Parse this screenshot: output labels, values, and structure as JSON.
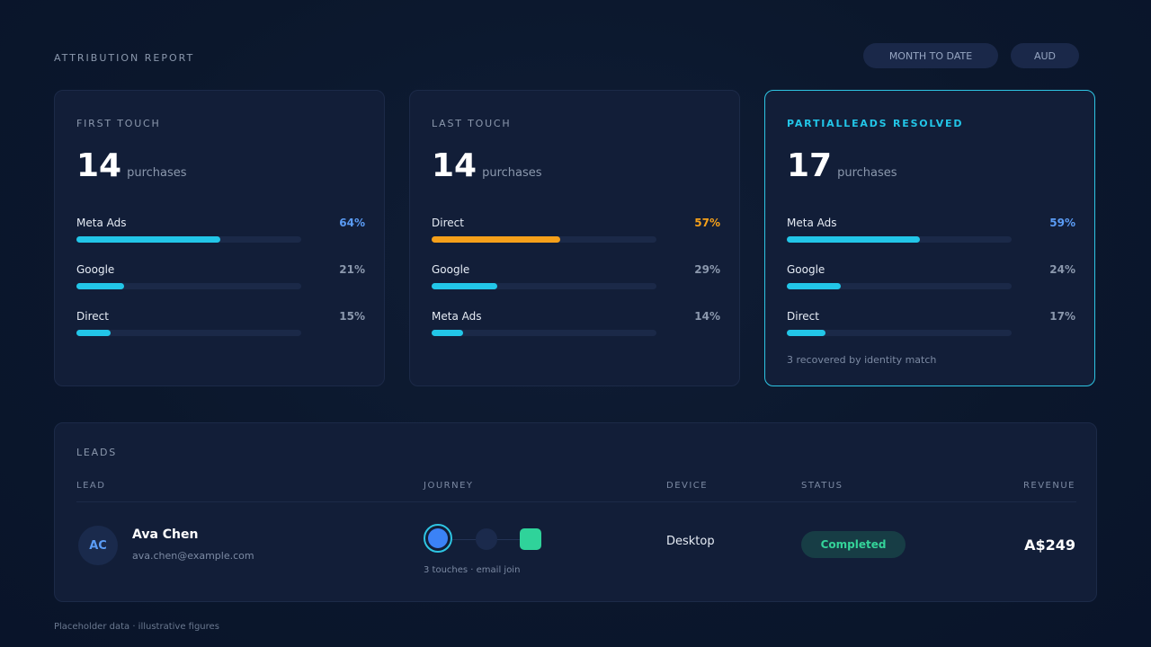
{
  "header": {
    "title": "ATTRIBUTION REPORT",
    "date_range": "MONTH TO DATE",
    "currency": "AUD"
  },
  "cards": [
    {
      "label": "FIRST TOUCH",
      "count": "14",
      "unit": "purchases",
      "rows": [
        {
          "channel": "Meta Ads",
          "pct_text": "64%",
          "pct": 64,
          "bar_color": "#22c6e8",
          "pct_color": "#5b9cf5"
        },
        {
          "channel": "Google",
          "pct_text": "21%",
          "pct": 21,
          "bar_color": "#22c6e8",
          "pct_color": "#8b98ad"
        },
        {
          "channel": "Direct",
          "pct_text": "15%",
          "pct": 15,
          "bar_color": "#22c6e8",
          "pct_color": "#8b98ad"
        }
      ]
    },
    {
      "label": "LAST TOUCH",
      "count": "14",
      "unit": "purchases",
      "rows": [
        {
          "channel": "Direct",
          "pct_text": "57%",
          "pct": 57,
          "bar_color": "#f5a01a",
          "pct_color": "#f5a01a"
        },
        {
          "channel": "Google",
          "pct_text": "29%",
          "pct": 29,
          "bar_color": "#22c6e8",
          "pct_color": "#8b98ad"
        },
        {
          "channel": "Meta Ads",
          "pct_text": "14%",
          "pct": 14,
          "bar_color": "#22c6e8",
          "pct_color": "#8b98ad"
        }
      ]
    },
    {
      "label": "PARTIALLEADS RESOLVED",
      "count": "17",
      "unit": "purchases",
      "rows": [
        {
          "channel": "Meta Ads",
          "pct_text": "59%",
          "pct": 59,
          "bar_color": "#22c6e8",
          "pct_color": "#5b9cf5"
        },
        {
          "channel": "Google",
          "pct_text": "24%",
          "pct": 24,
          "bar_color": "#22c6e8",
          "pct_color": "#8b98ad"
        },
        {
          "channel": "Direct",
          "pct_text": "17%",
          "pct": 17,
          "bar_color": "#22c6e8",
          "pct_color": "#8b98ad"
        }
      ],
      "note": "3 recovered by identity match"
    }
  ],
  "leads": {
    "title": "LEADS",
    "columns": {
      "lead": "LEAD",
      "journey": "JOURNEY",
      "device": "DEVICE",
      "status": "STATUS",
      "revenue": "REVENUE"
    },
    "rows": [
      {
        "initials": "AC",
        "name": "Ava Chen",
        "email": "ava.chen@example.com",
        "journey_caption": "3 touches · email join",
        "device": "Desktop",
        "status": "Completed",
        "revenue": "A$249"
      }
    ]
  },
  "footer": "Placeholder data · illustrative figures",
  "colors": {
    "accent": "#22c6e8",
    "warning": "#f5a01a",
    "success": "#34d399",
    "link": "#5b9cf5"
  }
}
